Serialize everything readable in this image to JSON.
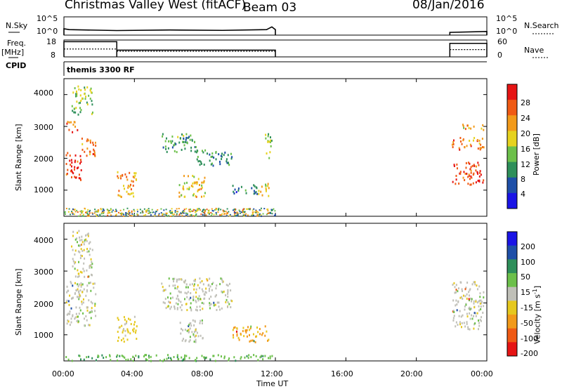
{
  "header": {
    "title": "Christmas Valley West (fitACF)",
    "beam": "Beam 03",
    "date": "08/Jan/2016"
  },
  "left_labels": {
    "nsky": "N.Sky",
    "freq": "Freq.",
    "mhz": "[MHz]",
    "cpid": "CPID"
  },
  "right_labels": {
    "nsearch": "N.Search",
    "nave": "Nave"
  },
  "small_axes": {
    "nsky_ticks": [
      "10^5",
      "10^0"
    ],
    "nsearch_ticks": [
      "10^5",
      "10^0"
    ],
    "freq_ticks": [
      "18",
      "8"
    ],
    "nave_ticks": [
      "60",
      "0"
    ]
  },
  "cpid_text": "themis 3300 RF",
  "x_axis": {
    "ticks": [
      "00:00",
      "04:00",
      "08:00",
      "12:00",
      "16:00",
      "20:00",
      "00:00"
    ],
    "label": "Time UT",
    "range_hours": [
      0,
      24
    ]
  },
  "power_panel": {
    "ylabel": "Slant Range [km]",
    "yticks": [
      "4000",
      "3000",
      "2000",
      "1000"
    ],
    "cbar_label": "Power [dB]",
    "cbar_ticks": [
      "28",
      "24",
      "20",
      "16",
      "12",
      "8",
      "4"
    ],
    "cbar_colors": [
      "#1a14e6",
      "#1e4fa8",
      "#2e8f5a",
      "#6cc04a",
      "#e6d21e",
      "#f29a1a",
      "#f05a14",
      "#e61414"
    ]
  },
  "velocity_panel": {
    "ylabel": "Slant Range [km]",
    "yticks": [
      "4000",
      "3000",
      "2000",
      "1000"
    ],
    "cbar_label": "Velocity [m s",
    "cbar_sup": "-1",
    "cbar_label_end": "]",
    "cbar_ticks": [
      "200",
      "100",
      "50",
      "15",
      "-15",
      "-50",
      "-100",
      "-200"
    ],
    "cbar_colors": [
      "#e61414",
      "#f05a14",
      "#f29a1a",
      "#e6c81e",
      "#c0c0b8",
      "#6cc04a",
      "#2e8f5a",
      "#1e4fa8",
      "#1a14e6"
    ]
  },
  "chart_data": {
    "type": "heatmap",
    "x_units": "hours UT",
    "y_units": "km",
    "ylim": [
      180,
      4500
    ],
    "xlim": [
      0,
      24
    ],
    "data_gap_hours": [
      12.0,
      21.9
    ],
    "nsky_trace": [
      {
        "t": 0.0,
        "v": 0.35
      },
      {
        "t": 0.3,
        "v": 0.3
      },
      {
        "t": 3.0,
        "v": 0.25
      },
      {
        "t": 6.0,
        "v": 0.28
      },
      {
        "t": 9.0,
        "v": 0.26
      },
      {
        "t": 11.5,
        "v": 0.3
      },
      {
        "t": 11.8,
        "v": 0.45
      },
      {
        "t": 12.0,
        "v": 0.3
      },
      {
        "t": 21.9,
        "v": 0.15
      },
      {
        "t": 24.0,
        "v": 0.2
      }
    ],
    "freq_mhz": [
      {
        "start": 0.0,
        "end": 3.0,
        "value": 17.0
      },
      {
        "start": 3.0,
        "end": 12.0,
        "value": 12.0
      },
      {
        "start": 21.9,
        "end": 24.0,
        "value": 16.0
      }
    ],
    "nave": [
      {
        "start": 0.0,
        "end": 3.0,
        "value": 28
      },
      {
        "start": 3.0,
        "end": 12.0,
        "value": 20
      },
      {
        "start": 21.9,
        "end": 24.0,
        "value": 26
      }
    ],
    "power_regions": [
      {
        "t0": 0.1,
        "t1": 1.0,
        "r0": 1300,
        "r1": 2200,
        "dB": 28
      },
      {
        "t0": 0.1,
        "t1": 0.8,
        "r0": 2850,
        "r1": 3200,
        "dB": 26
      },
      {
        "t0": 0.4,
        "t1": 1.6,
        "r0": 3400,
        "r1": 4300,
        "dB": 14
      },
      {
        "t0": 0.9,
        "t1": 1.8,
        "r0": 2100,
        "r1": 2700,
        "dB": 24
      },
      {
        "t0": 3.0,
        "t1": 4.1,
        "r0": 800,
        "r1": 1600,
        "dB": 22
      },
      {
        "t0": 5.5,
        "t1": 7.5,
        "r0": 2200,
        "r1": 2800,
        "dB": 12
      },
      {
        "t0": 7.5,
        "t1": 9.5,
        "r0": 1800,
        "r1": 2300,
        "dB": 10
      },
      {
        "t0": 6.5,
        "t1": 8.0,
        "r0": 800,
        "r1": 1500,
        "dB": 20
      },
      {
        "t0": 9.5,
        "t1": 11.0,
        "r0": 900,
        "r1": 1200,
        "dB": 8
      },
      {
        "t0": 11.0,
        "t1": 11.6,
        "r0": 800,
        "r1": 1300,
        "dB": 20
      },
      {
        "t0": 11.4,
        "t1": 11.8,
        "r0": 2000,
        "r1": 2800,
        "dB": 14
      },
      {
        "t0": 22.0,
        "t1": 23.8,
        "r0": 1200,
        "r1": 1900,
        "dB": 28
      },
      {
        "t0": 22.0,
        "t1": 23.8,
        "r0": 2300,
        "r1": 2700,
        "dB": 24
      },
      {
        "t0": 22.5,
        "t1": 23.8,
        "r0": 2900,
        "r1": 3100,
        "dB": 20
      }
    ],
    "velocity_regions": [
      {
        "t0": 0.1,
        "t1": 1.8,
        "r0": 1300,
        "r1": 2700,
        "v": 0
      },
      {
        "t0": 0.4,
        "t1": 1.6,
        "r0": 2850,
        "r1": 4300,
        "v": 0
      },
      {
        "t0": 3.0,
        "t1": 4.1,
        "r0": 800,
        "r1": 1600,
        "v": -30
      },
      {
        "t0": 5.5,
        "t1": 9.5,
        "r0": 1800,
        "r1": 2800,
        "v": 0
      },
      {
        "t0": 6.5,
        "t1": 8.0,
        "r0": 800,
        "r1": 1500,
        "v": 0
      },
      {
        "t0": 9.5,
        "t1": 11.6,
        "r0": 800,
        "r1": 1300,
        "v": -60
      },
      {
        "t0": 22.0,
        "t1": 23.8,
        "r0": 1200,
        "r1": 2700,
        "v": 0
      },
      {
        "t0": 0.0,
        "t1": 12.0,
        "r0": 200,
        "r1": 400,
        "v": 40
      }
    ]
  }
}
